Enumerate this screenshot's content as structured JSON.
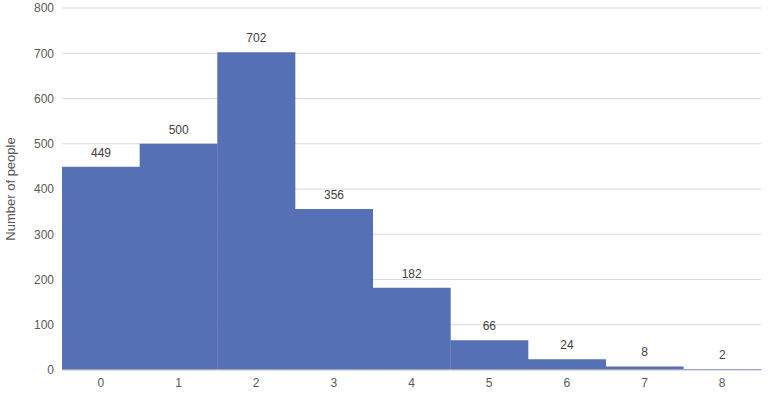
{
  "chart_data": {
    "type": "bar",
    "categories": [
      "0",
      "1",
      "2",
      "3",
      "4",
      "5",
      "6",
      "7",
      "8"
    ],
    "values": [
      449,
      500,
      702,
      356,
      182,
      66,
      24,
      8,
      2
    ],
    "color": "#5570b5",
    "ylabel": "Number of people",
    "ylim": [
      0,
      800
    ],
    "yticks": [
      0,
      100,
      200,
      300,
      400,
      500,
      600,
      700,
      800
    ],
    "grid": true,
    "data_labels": true
  }
}
